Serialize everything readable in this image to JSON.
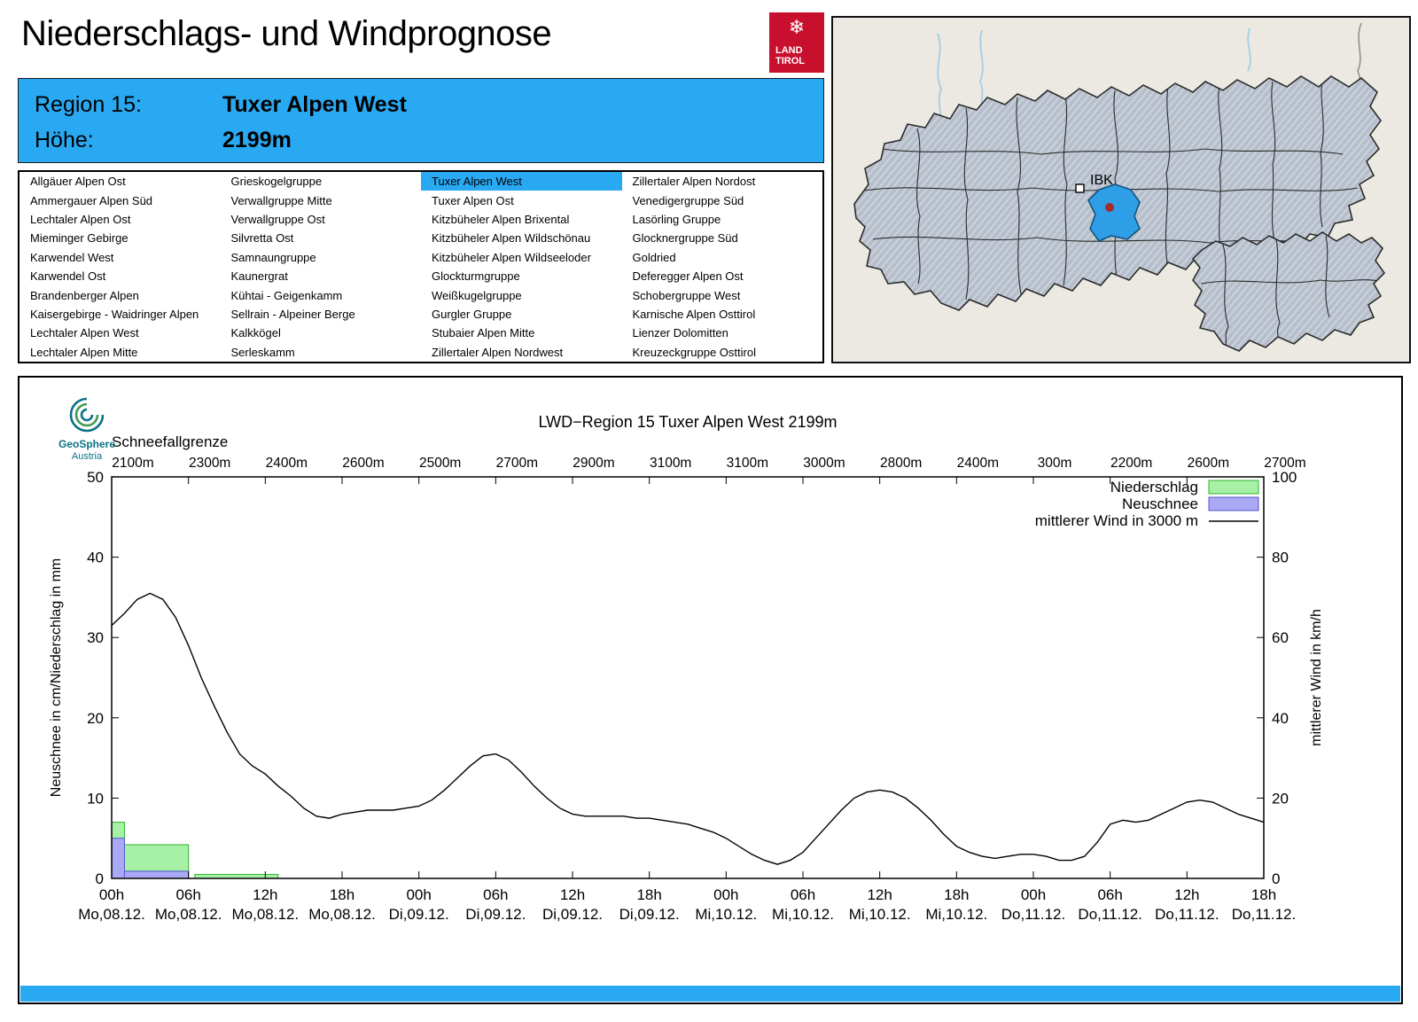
{
  "header": {
    "title": "Niederschlags- und Windprognose"
  },
  "logo_tirol": {
    "snowflake": "❄",
    "line1": "LAND",
    "line2": "TIROL"
  },
  "region_box": {
    "region_label": "Region 15:",
    "region_name": "Tuxer Alpen West",
    "height_label": "Höhe:",
    "height_value": "2199m"
  },
  "map": {
    "city_label": "IBK"
  },
  "region_table": {
    "selected": "Tuxer Alpen West",
    "columns": [
      [
        "Allgäuer Alpen Ost",
        "Ammergauer Alpen Süd",
        "Lechtaler Alpen Ost",
        "Mieminger Gebirge",
        "Karwendel West",
        "Karwendel Ost",
        "Brandenberger Alpen",
        "Kaisergebirge - Waidringer Alpen",
        "Lechtaler Alpen West",
        "Lechtaler Alpen Mitte"
      ],
      [
        "Grieskogelgruppe",
        "Verwallgruppe Mitte",
        "Verwallgruppe Ost",
        "Silvretta Ost",
        "Samnaungruppe",
        "Kaunergrat",
        "Kühtai - Geigenkamm",
        "Sellrain - Alpeiner Berge",
        "Kalkkögel",
        "Serleskamm"
      ],
      [
        "Tuxer Alpen West",
        "Tuxer Alpen Ost",
        "Kitzbüheler Alpen Brixental",
        "Kitzbüheler Alpen Wildschönau",
        "Kitzbüheler Alpen Wildseeloder",
        "Glockturmgruppe",
        "Weißkugelgruppe",
        "Gurgler Gruppe",
        "Stubaier Alpen Mitte",
        "Zillertaler Alpen Nordwest"
      ],
      [
        "Zillertaler Alpen Nordost",
        "Venedigergruppe Süd",
        "Lasörling Gruppe",
        "Glocknergruppe Süd",
        "Goldried",
        "Deferegger Alpen Ost",
        "Schobergruppe West",
        "Karnische Alpen Osttirol",
        "Lienzer Dolomitten",
        "Kreuzeckgruppe Osttirol"
      ]
    ]
  },
  "geosphere": {
    "line1": "GeoSphere",
    "line2": "Austria"
  },
  "colors": {
    "accent_blue": "#29A9F2",
    "logo_red": "#C8102E",
    "map_highlight": "#2E9FE6",
    "bar_green_fill": "#A6F1A6",
    "bar_green_stroke": "#2FB52F",
    "bar_blue_fill": "#A9A9F5",
    "bar_blue_stroke": "#5555CC",
    "wind_line": "#000000"
  },
  "chart_data": {
    "type": "line+bar",
    "title": "LWD−Region 15 Tuxer Alpen West 2199m",
    "x_span_hours": 90,
    "snowline": {
      "label": "Schneefallgrenze",
      "values": [
        "2100m",
        "2300m",
        "2400m",
        "2600m",
        "2500m",
        "2700m",
        "2900m",
        "3100m",
        "3100m",
        "3000m",
        "2800m",
        "2400m",
        "300m",
        "2200m",
        "2600m",
        "2700m"
      ]
    },
    "x_ticks": [
      {
        "hour": "00h",
        "date": "Mo,08.12."
      },
      {
        "hour": "06h",
        "date": "Mo,08.12."
      },
      {
        "hour": "12h",
        "date": "Mo,08.12."
      },
      {
        "hour": "18h",
        "date": "Mo,08.12."
      },
      {
        "hour": "00h",
        "date": "Di,09.12."
      },
      {
        "hour": "06h",
        "date": "Di,09.12."
      },
      {
        "hour": "12h",
        "date": "Di,09.12."
      },
      {
        "hour": "18h",
        "date": "Di,09.12."
      },
      {
        "hour": "00h",
        "date": "Mi,10.12."
      },
      {
        "hour": "06h",
        "date": "Mi,10.12."
      },
      {
        "hour": "12h",
        "date": "Mi,10.12."
      },
      {
        "hour": "18h",
        "date": "Mi,10.12."
      },
      {
        "hour": "00h",
        "date": "Do,11.12."
      },
      {
        "hour": "06h",
        "date": "Do,11.12."
      },
      {
        "hour": "12h",
        "date": "Do,11.12."
      },
      {
        "hour": "18h",
        "date": "Do,11.12."
      }
    ],
    "axes": {
      "left": {
        "label": "Neuschnee in cm/Niederschlag in mm",
        "min": 0,
        "max": 50,
        "ticks": [
          0,
          10,
          20,
          30,
          40,
          50
        ]
      },
      "right": {
        "label": "mittlerer Wind in km/h",
        "min": 0,
        "max": 100,
        "ticks": [
          0,
          20,
          40,
          60,
          80,
          100
        ]
      }
    },
    "legend": [
      {
        "label": "Niederschlag",
        "type": "box",
        "fill": "#A6F1A6",
        "stroke": "#2FB52F"
      },
      {
        "label": "Neuschnee",
        "type": "box",
        "fill": "#A9A9F5",
        "stroke": "#5555CC"
      },
      {
        "label": "mittlerer Wind in 3000 m",
        "type": "line",
        "stroke": "#000000"
      }
    ],
    "series": {
      "niederschlag_mm": [
        {
          "from": 0,
          "to": 1,
          "value": 7
        },
        {
          "from": 1,
          "to": 6,
          "value": 4.2
        },
        {
          "from": 6.5,
          "to": 13,
          "value": 0.5
        }
      ],
      "neuschnee_cm": [
        {
          "from": 0,
          "to": 1,
          "value": 5
        },
        {
          "from": 1,
          "to": 6,
          "value": 0.9
        }
      ],
      "wind_kmh": {
        "start_hour": 0,
        "step_hours": 1,
        "values": [
          63,
          66,
          69.5,
          71,
          69.5,
          65,
          58,
          50,
          43,
          36.5,
          31,
          28,
          26,
          23,
          20.5,
          17.5,
          15.5,
          15,
          16,
          16.5,
          17,
          17,
          17,
          17.5,
          18,
          19.5,
          22,
          25,
          28,
          30.5,
          31,
          29.5,
          26.5,
          23,
          20,
          17.5,
          16,
          15.5,
          15.5,
          15.5,
          15.5,
          15,
          15,
          14.5,
          14,
          13.5,
          12.5,
          11.5,
          10,
          8,
          6,
          4.5,
          3.5,
          4.5,
          6.5,
          10,
          13.5,
          17,
          20,
          21.5,
          22,
          21.5,
          20,
          17.5,
          14.5,
          11,
          8,
          6.5,
          5.5,
          5,
          5.5,
          6,
          6,
          5.5,
          4.5,
          4.5,
          5.5,
          9,
          13.5,
          14.5,
          14,
          14.5,
          16,
          17.5,
          19,
          19.5,
          19,
          17.5,
          16,
          15,
          14
        ]
      }
    }
  }
}
